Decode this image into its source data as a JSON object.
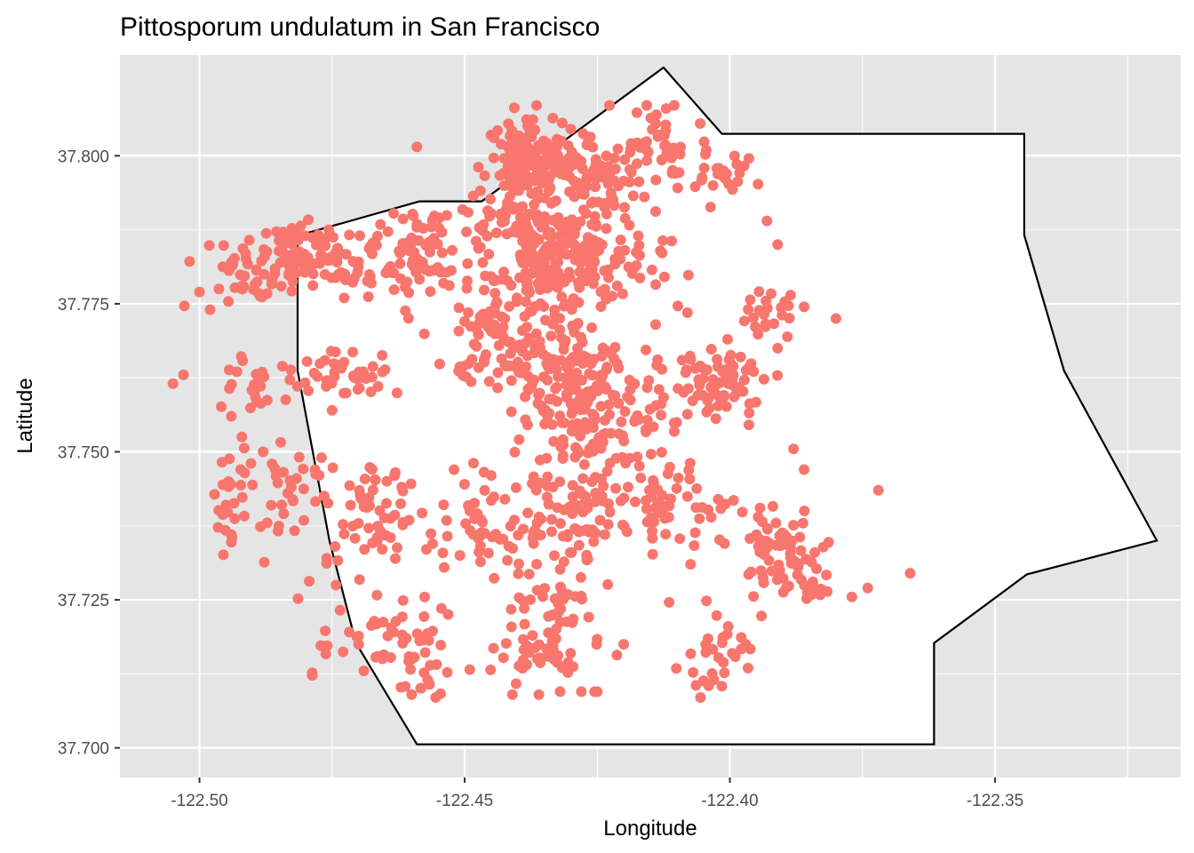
{
  "chart_data": {
    "type": "scatter",
    "title": "Pittosporum undulatum in San Francisco",
    "xlabel": "Longitude",
    "ylabel": "Latitude",
    "xlim": [
      -122.515,
      -122.315
    ],
    "ylim": [
      37.695,
      37.817
    ],
    "x_ticks": [
      -122.5,
      -122.45,
      -122.4,
      -122.35
    ],
    "x_tick_labels": [
      "-122.50",
      "-122.45",
      "-122.40",
      "-122.35"
    ],
    "x_minor": [
      -122.475,
      -122.425,
      -122.375,
      -122.325
    ],
    "y_ticks": [
      37.7,
      37.725,
      37.75,
      37.775,
      37.8
    ],
    "y_tick_labels": [
      "37.700",
      "37.725",
      "37.750",
      "37.775",
      "37.800"
    ],
    "y_minor": [
      37.7125,
      37.7375,
      37.7625,
      37.7875
    ],
    "grid": true,
    "colors": {
      "panel_background": "#e5e5e5",
      "grid_major": "#ffffff",
      "boundary_fill": "#ffffff",
      "boundary_stroke": "#000000",
      "point": "#f8766d",
      "tick_label": "#4d4d4d"
    },
    "boundary": [
      [
        -122.4815,
        37.7865
      ],
      [
        -122.4585,
        37.7923
      ],
      [
        -122.4468,
        37.7923
      ],
      [
        -122.4125,
        37.8149
      ],
      [
        -122.4015,
        37.8037
      ],
      [
        -122.3445,
        37.8037
      ],
      [
        -122.3445,
        37.7866
      ],
      [
        -122.337,
        37.7637
      ],
      [
        -122.3195,
        37.735
      ],
      [
        -122.344,
        37.7293
      ],
      [
        -122.3615,
        37.7177
      ],
      [
        -122.3615,
        37.7006
      ],
      [
        -122.459,
        37.7006
      ],
      [
        -122.4705,
        37.7177
      ],
      [
        -122.4755,
        37.735
      ],
      [
        -122.4815,
        37.7637
      ],
      [
        -122.4815,
        37.775
      ]
    ],
    "point_clusters": [
      {
        "cx": -122.437,
        "cy": 37.799,
        "sx": 0.004,
        "sy": 0.0028,
        "n": 140
      },
      {
        "cx": -122.427,
        "cy": 37.797,
        "sx": 0.006,
        "sy": 0.004,
        "n": 90
      },
      {
        "cx": -122.413,
        "cy": 37.801,
        "sx": 0.004,
        "sy": 0.004,
        "n": 45
      },
      {
        "cx": -122.402,
        "cy": 37.797,
        "sx": 0.003,
        "sy": 0.003,
        "n": 25
      },
      {
        "cx": -122.478,
        "cy": 37.783,
        "sx": 0.005,
        "sy": 0.003,
        "n": 85
      },
      {
        "cx": -122.491,
        "cy": 37.78,
        "sx": 0.005,
        "sy": 0.003,
        "n": 45
      },
      {
        "cx": -122.458,
        "cy": 37.783,
        "sx": 0.006,
        "sy": 0.004,
        "n": 95
      },
      {
        "cx": -122.437,
        "cy": 37.788,
        "sx": 0.008,
        "sy": 0.003,
        "n": 95
      },
      {
        "cx": -122.433,
        "cy": 37.779,
        "sx": 0.005,
        "sy": 0.004,
        "n": 110
      },
      {
        "cx": -122.422,
        "cy": 37.783,
        "sx": 0.006,
        "sy": 0.004,
        "n": 55
      },
      {
        "cx": -122.445,
        "cy": 37.768,
        "sx": 0.005,
        "sy": 0.005,
        "n": 80
      },
      {
        "cx": -122.431,
        "cy": 37.76,
        "sx": 0.004,
        "sy": 0.006,
        "n": 130
      },
      {
        "cx": -122.418,
        "cy": 37.757,
        "sx": 0.006,
        "sy": 0.006,
        "n": 85
      },
      {
        "cx": -122.402,
        "cy": 37.761,
        "sx": 0.004,
        "sy": 0.003,
        "n": 70
      },
      {
        "cx": -122.392,
        "cy": 37.773,
        "sx": 0.003,
        "sy": 0.002,
        "n": 22
      },
      {
        "cx": -122.472,
        "cy": 37.763,
        "sx": 0.005,
        "sy": 0.002,
        "n": 40
      },
      {
        "cx": -122.489,
        "cy": 37.762,
        "sx": 0.004,
        "sy": 0.003,
        "n": 25
      },
      {
        "cx": -122.485,
        "cy": 37.743,
        "sx": 0.005,
        "sy": 0.005,
        "n": 45
      },
      {
        "cx": -122.467,
        "cy": 37.739,
        "sx": 0.004,
        "sy": 0.005,
        "n": 55
      },
      {
        "cx": -122.447,
        "cy": 37.737,
        "sx": 0.006,
        "sy": 0.005,
        "n": 55
      },
      {
        "cx": -122.43,
        "cy": 37.74,
        "sx": 0.005,
        "sy": 0.005,
        "n": 70
      },
      {
        "cx": -122.413,
        "cy": 37.74,
        "sx": 0.005,
        "sy": 0.004,
        "n": 55
      },
      {
        "cx": -122.391,
        "cy": 37.733,
        "sx": 0.004,
        "sy": 0.004,
        "n": 60
      },
      {
        "cx": -122.384,
        "cy": 37.727,
        "sx": 0.002,
        "sy": 0.001,
        "n": 12
      },
      {
        "cx": -122.434,
        "cy": 37.72,
        "sx": 0.005,
        "sy": 0.005,
        "n": 75
      },
      {
        "cx": -122.459,
        "cy": 37.717,
        "sx": 0.005,
        "sy": 0.004,
        "n": 50
      },
      {
        "cx": -122.404,
        "cy": 37.716,
        "sx": 0.004,
        "sy": 0.004,
        "n": 28
      },
      {
        "cx": -122.495,
        "cy": 37.739,
        "sx": 0.001,
        "sy": 0.003,
        "n": 12
      },
      {
        "cx": -122.476,
        "cy": 37.722,
        "sx": 0.003,
        "sy": 0.006,
        "n": 14
      }
    ],
    "points": [
      [
        -122.459,
        37.8015
      ],
      [
        -122.505,
        37.7615
      ],
      [
        -122.503,
        37.763
      ],
      [
        -122.5,
        37.777
      ],
      [
        -122.498,
        37.774
      ],
      [
        -122.494,
        37.756
      ],
      [
        -122.488,
        37.75
      ],
      [
        -122.492,
        37.7525
      ],
      [
        -122.494,
        37.736
      ],
      [
        -122.475,
        37.757
      ],
      [
        -122.477,
        37.749
      ],
      [
        -122.476,
        37.732
      ],
      [
        -122.47,
        37.7175
      ],
      [
        -122.469,
        37.713
      ],
      [
        -122.46,
        37.709
      ],
      [
        -122.384,
        37.733
      ],
      [
        -122.391,
        37.7675
      ],
      [
        -122.386,
        37.7745
      ],
      [
        -122.391,
        37.785
      ],
      [
        -122.393,
        37.789
      ],
      [
        -122.386,
        37.747
      ],
      [
        -122.366,
        37.7295
      ],
      [
        -122.374,
        37.727
      ],
      [
        -122.42,
        37.7175
      ],
      [
        -122.404,
        37.7105
      ],
      [
        -122.403,
        37.7115
      ],
      [
        -122.397,
        37.7175
      ],
      [
        -122.401,
        37.7345
      ],
      [
        -122.395,
        37.736
      ],
      [
        -122.408,
        37.7735
      ],
      [
        -122.409,
        37.7655
      ],
      [
        -122.414,
        37.7715
      ],
      [
        -122.452,
        37.747
      ],
      [
        -122.445,
        37.746
      ],
      [
        -122.437,
        37.7345
      ],
      [
        -122.432,
        37.7095
      ],
      [
        -122.436,
        37.709
      ],
      [
        -122.441,
        37.709
      ],
      [
        -122.428,
        37.7095
      ],
      [
        -122.425,
        37.7095
      ],
      [
        -122.388,
        37.7505
      ],
      [
        -122.38,
        37.7725
      ],
      [
        -122.372,
        37.7435
      ],
      [
        -122.377,
        37.7255
      ]
    ]
  }
}
